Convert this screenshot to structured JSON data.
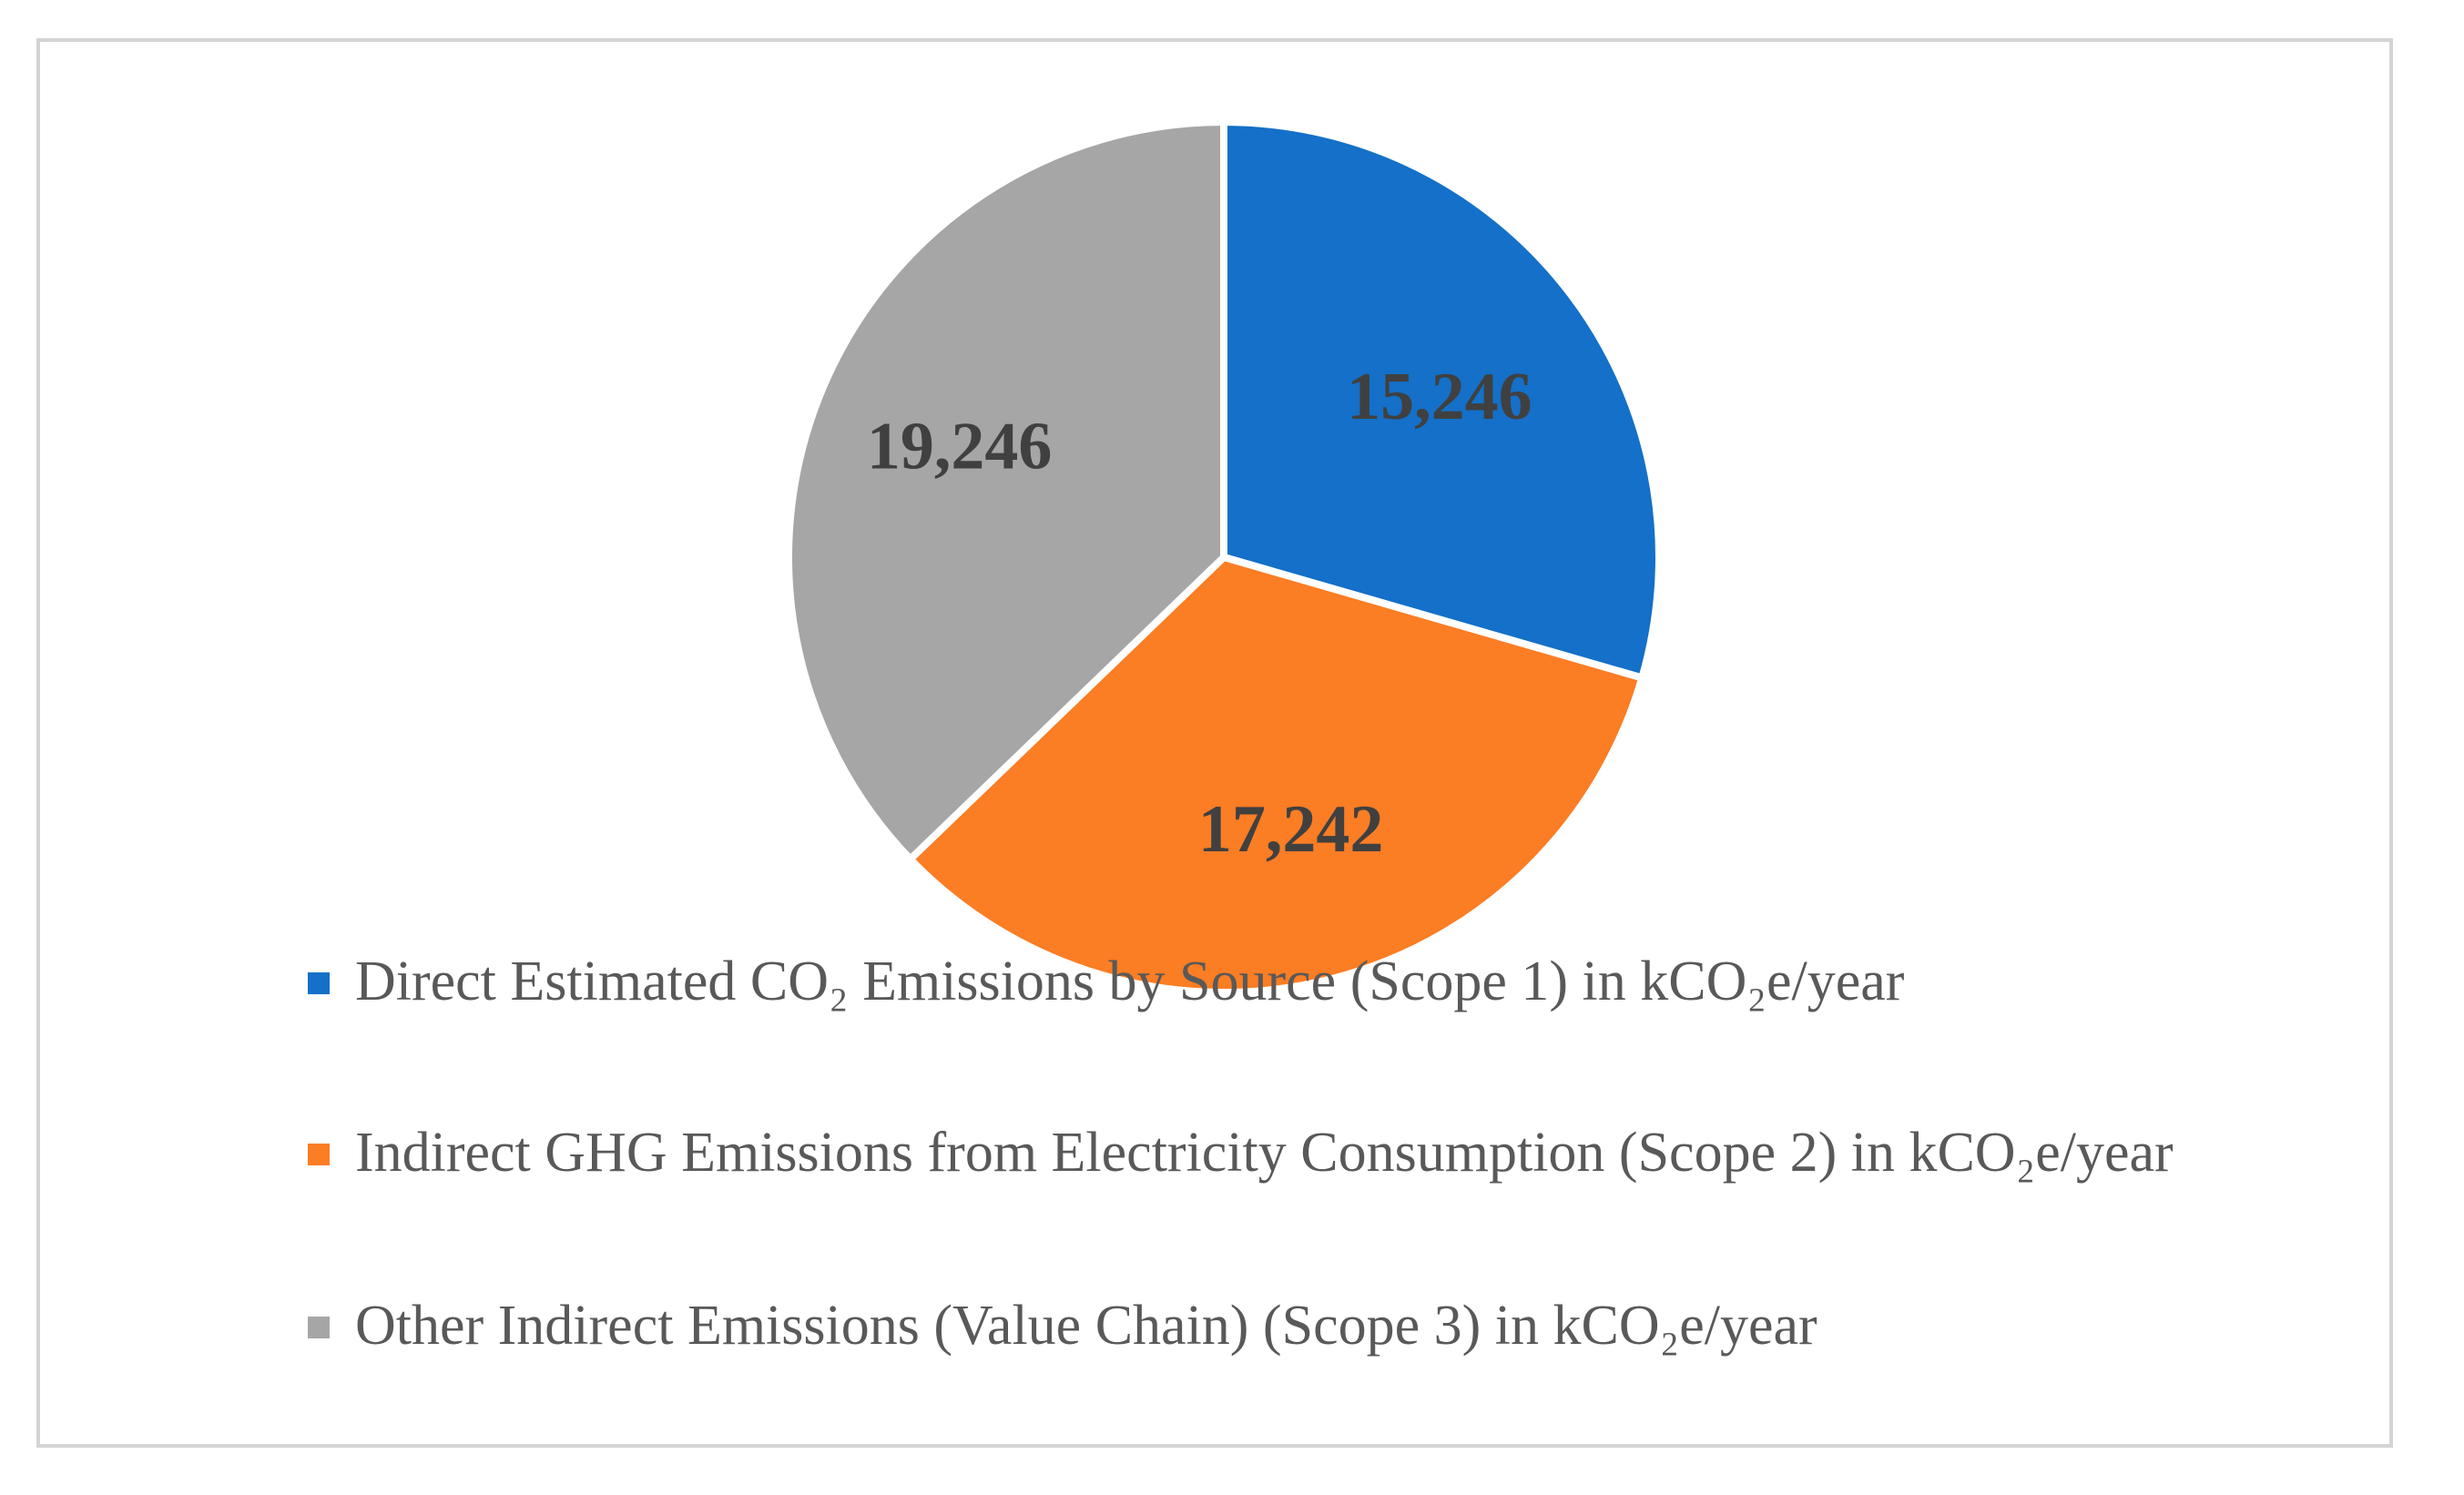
{
  "chart_data": {
    "type": "pie",
    "title": "",
    "slices": [
      {
        "label": "Direct Estimated CO₂ Emissions by Source  (Scope 1)  in kCO₂e/year",
        "value": 15246,
        "value_label": "15,246",
        "color": "#1470c8"
      },
      {
        "label": "Indirect GHG Emissions from Electricity Consumption (Scope 2) in kCO₂e/year",
        "value": 17242,
        "value_label": "17,242",
        "color": "#fb7d24"
      },
      {
        "label": "Other Indirect Emissions (Value Chain) (Scope 3) in kCO₂e/year",
        "value": 19246,
        "value_label": "19,246",
        "color": "#a6a6a6"
      }
    ],
    "legend_position": "bottom"
  }
}
